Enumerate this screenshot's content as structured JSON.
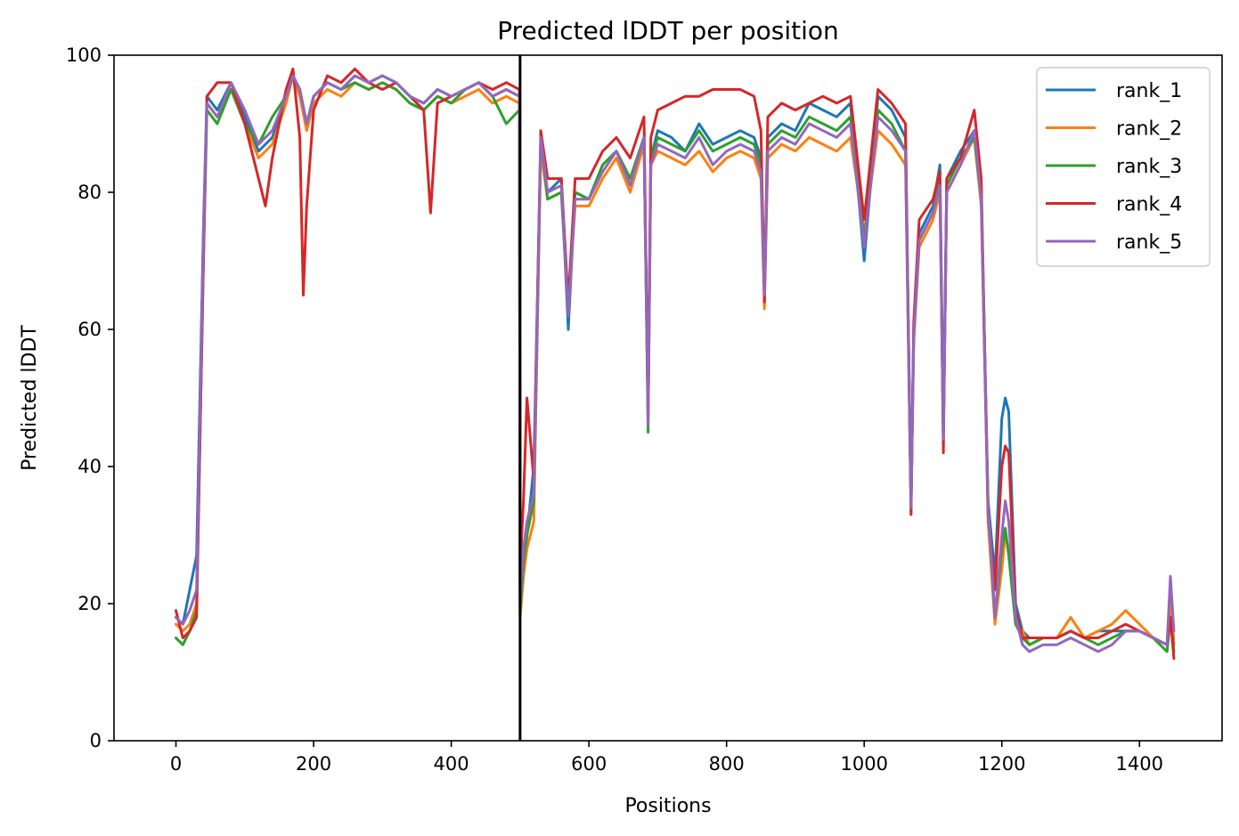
{
  "chart_data": {
    "type": "line",
    "title": "Predicted lDDT per position",
    "xlabel": "Positions",
    "ylabel": "Predicted lDDT",
    "xlim": [
      -90,
      1520
    ],
    "ylim": [
      0,
      100
    ],
    "xticks": [
      0,
      200,
      400,
      600,
      800,
      1000,
      1200,
      1400
    ],
    "yticks": [
      0,
      20,
      40,
      60,
      80,
      100
    ],
    "vline_x": 500,
    "legend_position": "top-right",
    "series": [
      {
        "name": "rank_1",
        "color": "#1f77b4",
        "x": [
          0,
          10,
          20,
          30,
          40,
          45,
          60,
          80,
          100,
          120,
          140,
          160,
          170,
          180,
          190,
          200,
          220,
          240,
          260,
          280,
          300,
          320,
          340,
          360,
          380,
          400,
          420,
          440,
          460,
          480,
          499,
          500,
          505,
          510,
          520,
          530,
          540,
          560,
          570,
          580,
          600,
          620,
          640,
          660,
          680,
          686,
          690,
          700,
          720,
          740,
          760,
          780,
          800,
          820,
          840,
          850,
          855,
          860,
          880,
          900,
          920,
          940,
          960,
          980,
          1000,
          1020,
          1040,
          1060,
          1068,
          1072,
          1080,
          1100,
          1110,
          1115,
          1120,
          1140,
          1160,
          1170,
          1180,
          1190,
          1200,
          1205,
          1210,
          1220,
          1230,
          1240,
          1260,
          1280,
          1300,
          1320,
          1340,
          1360,
          1380,
          1400,
          1420,
          1440,
          1445,
          1450
        ],
        "values": [
          18,
          17,
          22,
          27,
          75,
          94,
          92,
          96,
          91,
          86,
          88,
          94,
          97,
          95,
          90,
          94,
          96,
          95,
          97,
          96,
          97,
          96,
          94,
          93,
          95,
          94,
          95,
          96,
          94,
          95,
          94,
          22,
          25,
          30,
          40,
          87,
          80,
          82,
          60,
          80,
          79,
          84,
          86,
          82,
          88,
          47,
          85,
          89,
          88,
          86,
          90,
          87,
          88,
          89,
          88,
          85,
          66,
          88,
          90,
          89,
          93,
          92,
          91,
          93,
          70,
          94,
          92,
          88,
          35,
          60,
          74,
          78,
          84,
          45,
          82,
          86,
          89,
          80,
          35,
          24,
          47,
          50,
          48,
          20,
          16,
          15,
          15,
          15,
          16,
          15,
          16,
          16,
          16,
          16,
          15,
          14,
          22,
          14
        ]
      },
      {
        "name": "rank_2",
        "color": "#ff7f0e",
        "x": [
          0,
          10,
          20,
          30,
          40,
          45,
          60,
          80,
          100,
          120,
          140,
          160,
          170,
          180,
          190,
          200,
          220,
          240,
          260,
          280,
          300,
          320,
          340,
          360,
          380,
          400,
          420,
          440,
          460,
          480,
          499,
          500,
          505,
          510,
          520,
          530,
          540,
          560,
          570,
          580,
          600,
          620,
          640,
          660,
          680,
          686,
          690,
          700,
          720,
          740,
          760,
          780,
          800,
          820,
          840,
          850,
          855,
          860,
          880,
          900,
          920,
          940,
          960,
          980,
          1000,
          1020,
          1040,
          1060,
          1068,
          1072,
          1080,
          1100,
          1110,
          1115,
          1120,
          1140,
          1160,
          1170,
          1180,
          1190,
          1200,
          1205,
          1210,
          1220,
          1230,
          1240,
          1260,
          1280,
          1300,
          1320,
          1340,
          1360,
          1380,
          1400,
          1420,
          1440,
          1445,
          1450
        ],
        "values": [
          17,
          16,
          17,
          20,
          72,
          93,
          91,
          95,
          90,
          85,
          87,
          93,
          97,
          94,
          89,
          93,
          95,
          94,
          96,
          95,
          96,
          95,
          93,
          92,
          94,
          93,
          94,
          95,
          93,
          94,
          93,
          18,
          24,
          28,
          32,
          86,
          79,
          80,
          63,
          78,
          78,
          82,
          85,
          80,
          87,
          47,
          84,
          86,
          85,
          84,
          86,
          83,
          85,
          86,
          85,
          82,
          63,
          85,
          87,
          86,
          88,
          87,
          86,
          88,
          74,
          89,
          87,
          84,
          33,
          58,
          72,
          76,
          80,
          44,
          80,
          84,
          88,
          78,
          32,
          17,
          25,
          30,
          28,
          17,
          16,
          14,
          15,
          15,
          18,
          15,
          16,
          17,
          19,
          17,
          15,
          14,
          20,
          14
        ]
      },
      {
        "name": "rank_3",
        "color": "#2ca02c",
        "x": [
          0,
          10,
          20,
          30,
          40,
          45,
          60,
          80,
          100,
          120,
          140,
          160,
          170,
          180,
          190,
          200,
          220,
          240,
          260,
          280,
          300,
          320,
          340,
          360,
          380,
          400,
          420,
          440,
          460,
          480,
          499,
          500,
          505,
          510,
          520,
          530,
          540,
          560,
          570,
          580,
          600,
          620,
          640,
          660,
          680,
          686,
          690,
          700,
          720,
          740,
          760,
          780,
          800,
          820,
          840,
          850,
          855,
          860,
          880,
          900,
          920,
          940,
          960,
          980,
          1000,
          1020,
          1040,
          1060,
          1068,
          1072,
          1080,
          1100,
          1110,
          1115,
          1120,
          1140,
          1160,
          1170,
          1180,
          1190,
          1200,
          1205,
          1210,
          1220,
          1230,
          1240,
          1260,
          1280,
          1300,
          1320,
          1340,
          1360,
          1380,
          1400,
          1420,
          1440,
          1445,
          1450
        ],
        "values": [
          15,
          14,
          16,
          19,
          70,
          92,
          90,
          95,
          90,
          87,
          91,
          94,
          97,
          95,
          90,
          94,
          96,
          95,
          96,
          95,
          96,
          95,
          93,
          92,
          94,
          93,
          95,
          96,
          94,
          90,
          92,
          19,
          26,
          30,
          35,
          88,
          79,
          80,
          62,
          80,
          79,
          84,
          86,
          82,
          88,
          45,
          85,
          88,
          87,
          86,
          89,
          86,
          87,
          88,
          87,
          84,
          65,
          87,
          89,
          88,
          91,
          90,
          89,
          91,
          73,
          92,
          90,
          86,
          34,
          59,
          73,
          77,
          82,
          45,
          81,
          85,
          88,
          79,
          34,
          18,
          28,
          31,
          27,
          17,
          15,
          14,
          15,
          15,
          16,
          15,
          14,
          15,
          16,
          16,
          15,
          13,
          18,
          13
        ]
      },
      {
        "name": "rank_4",
        "color": "#d62728",
        "x": [
          0,
          10,
          20,
          30,
          40,
          45,
          60,
          80,
          100,
          120,
          130,
          140,
          160,
          170,
          180,
          185,
          190,
          200,
          220,
          240,
          260,
          280,
          300,
          320,
          340,
          360,
          370,
          380,
          400,
          420,
          440,
          460,
          480,
          499,
          500,
          505,
          510,
          520,
          530,
          540,
          560,
          570,
          580,
          600,
          620,
          640,
          660,
          680,
          686,
          690,
          700,
          720,
          740,
          760,
          780,
          800,
          820,
          840,
          850,
          855,
          860,
          880,
          900,
          920,
          940,
          960,
          980,
          1000,
          1020,
          1040,
          1060,
          1068,
          1072,
          1080,
          1100,
          1110,
          1115,
          1120,
          1140,
          1160,
          1170,
          1180,
          1190,
          1200,
          1205,
          1210,
          1220,
          1230,
          1240,
          1260,
          1280,
          1300,
          1320,
          1340,
          1360,
          1380,
          1400,
          1420,
          1440,
          1445,
          1450
        ],
        "values": [
          19,
          15,
          16,
          18,
          70,
          94,
          96,
          96,
          90,
          82,
          78,
          85,
          95,
          98,
          88,
          65,
          78,
          92,
          97,
          96,
          98,
          96,
          95,
          96,
          94,
          92,
          77,
          93,
          94,
          95,
          96,
          95,
          96,
          95,
          25,
          35,
          50,
          38,
          89,
          82,
          82,
          64,
          82,
          82,
          86,
          88,
          85,
          91,
          48,
          88,
          92,
          93,
          94,
          94,
          95,
          95,
          95,
          94,
          89,
          64,
          91,
          93,
          92,
          93,
          94,
          93,
          94,
          76,
          95,
          93,
          90,
          33,
          61,
          76,
          79,
          83,
          42,
          82,
          85,
          92,
          82,
          33,
          22,
          40,
          43,
          42,
          19,
          15,
          15,
          15,
          15,
          16,
          15,
          15,
          16,
          17,
          16,
          15,
          14,
          18,
          12
        ]
      },
      {
        "name": "rank_5",
        "color": "#9467bd",
        "x": [
          0,
          10,
          20,
          30,
          40,
          45,
          60,
          80,
          100,
          120,
          140,
          160,
          170,
          180,
          190,
          200,
          220,
          240,
          260,
          280,
          300,
          320,
          340,
          360,
          380,
          400,
          420,
          440,
          460,
          480,
          499,
          500,
          505,
          510,
          520,
          530,
          540,
          560,
          570,
          580,
          600,
          620,
          640,
          660,
          680,
          686,
          690,
          700,
          720,
          740,
          760,
          780,
          800,
          820,
          840,
          850,
          855,
          860,
          880,
          900,
          920,
          940,
          960,
          980,
          1000,
          1020,
          1040,
          1060,
          1068,
          1072,
          1080,
          1100,
          1110,
          1115,
          1120,
          1140,
          1160,
          1170,
          1180,
          1190,
          1200,
          1205,
          1210,
          1220,
          1230,
          1240,
          1260,
          1280,
          1300,
          1320,
          1340,
          1360,
          1380,
          1400,
          1420,
          1440,
          1445,
          1450
        ],
        "values": [
          18,
          17,
          19,
          22,
          74,
          93,
          91,
          96,
          92,
          87,
          89,
          94,
          97,
          95,
          90,
          94,
          96,
          95,
          97,
          96,
          97,
          96,
          94,
          93,
          95,
          94,
          95,
          96,
          94,
          95,
          94,
          20,
          28,
          32,
          36,
          88,
          80,
          81,
          62,
          79,
          79,
          83,
          86,
          81,
          88,
          46,
          84,
          87,
          86,
          85,
          88,
          84,
          86,
          87,
          86,
          83,
          65,
          86,
          88,
          87,
          90,
          89,
          88,
          90,
          72,
          91,
          89,
          86,
          34,
          59,
          73,
          77,
          81,
          44,
          80,
          84,
          89,
          79,
          34,
          18,
          30,
          35,
          32,
          18,
          14,
          13,
          14,
          14,
          15,
          14,
          13,
          14,
          16,
          16,
          15,
          14,
          24,
          16
        ]
      }
    ]
  }
}
